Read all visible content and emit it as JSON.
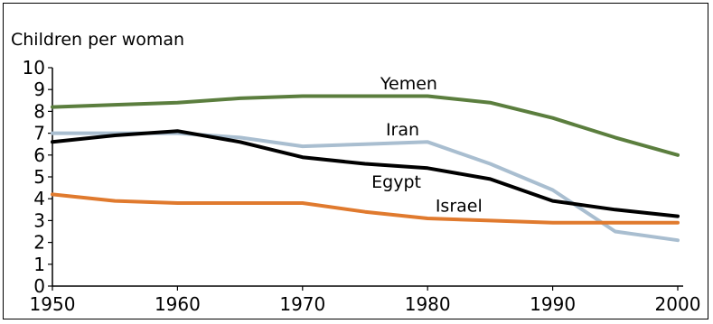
{
  "chart_data": {
    "type": "line",
    "ylabel": "Children per woman",
    "xlabel": "",
    "x": [
      1950,
      1955,
      1960,
      1965,
      1970,
      1975,
      1980,
      1985,
      1990,
      1995,
      2000
    ],
    "xticks": [
      1950,
      1960,
      1970,
      1980,
      1990,
      2000
    ],
    "yticks": [
      0,
      1,
      2,
      3,
      4,
      5,
      6,
      7,
      8,
      9,
      10
    ],
    "xlim": [
      1950,
      2000
    ],
    "ylim": [
      0,
      10
    ],
    "grid": false,
    "legend": "inline labels",
    "series": [
      {
        "name": "Yemen",
        "color": "#5b7e3e",
        "values": [
          8.2,
          8.3,
          8.4,
          8.6,
          8.7,
          8.7,
          8.7,
          8.4,
          7.7,
          6.8,
          6.0
        ]
      },
      {
        "name": "Iran",
        "color": "#a9bed0",
        "values": [
          7.0,
          7.0,
          7.0,
          6.8,
          6.4,
          6.5,
          6.6,
          5.6,
          4.4,
          2.5,
          2.1
        ]
      },
      {
        "name": "Egypt",
        "color": "#000000",
        "values": [
          6.6,
          6.9,
          7.1,
          6.6,
          5.9,
          5.6,
          5.4,
          4.9,
          3.9,
          3.5,
          3.2
        ]
      },
      {
        "name": "Israel",
        "color": "#e07a2e",
        "values": [
          4.2,
          3.9,
          3.8,
          3.8,
          3.8,
          3.4,
          3.1,
          3.0,
          2.9,
          2.9,
          2.9
        ]
      }
    ]
  }
}
